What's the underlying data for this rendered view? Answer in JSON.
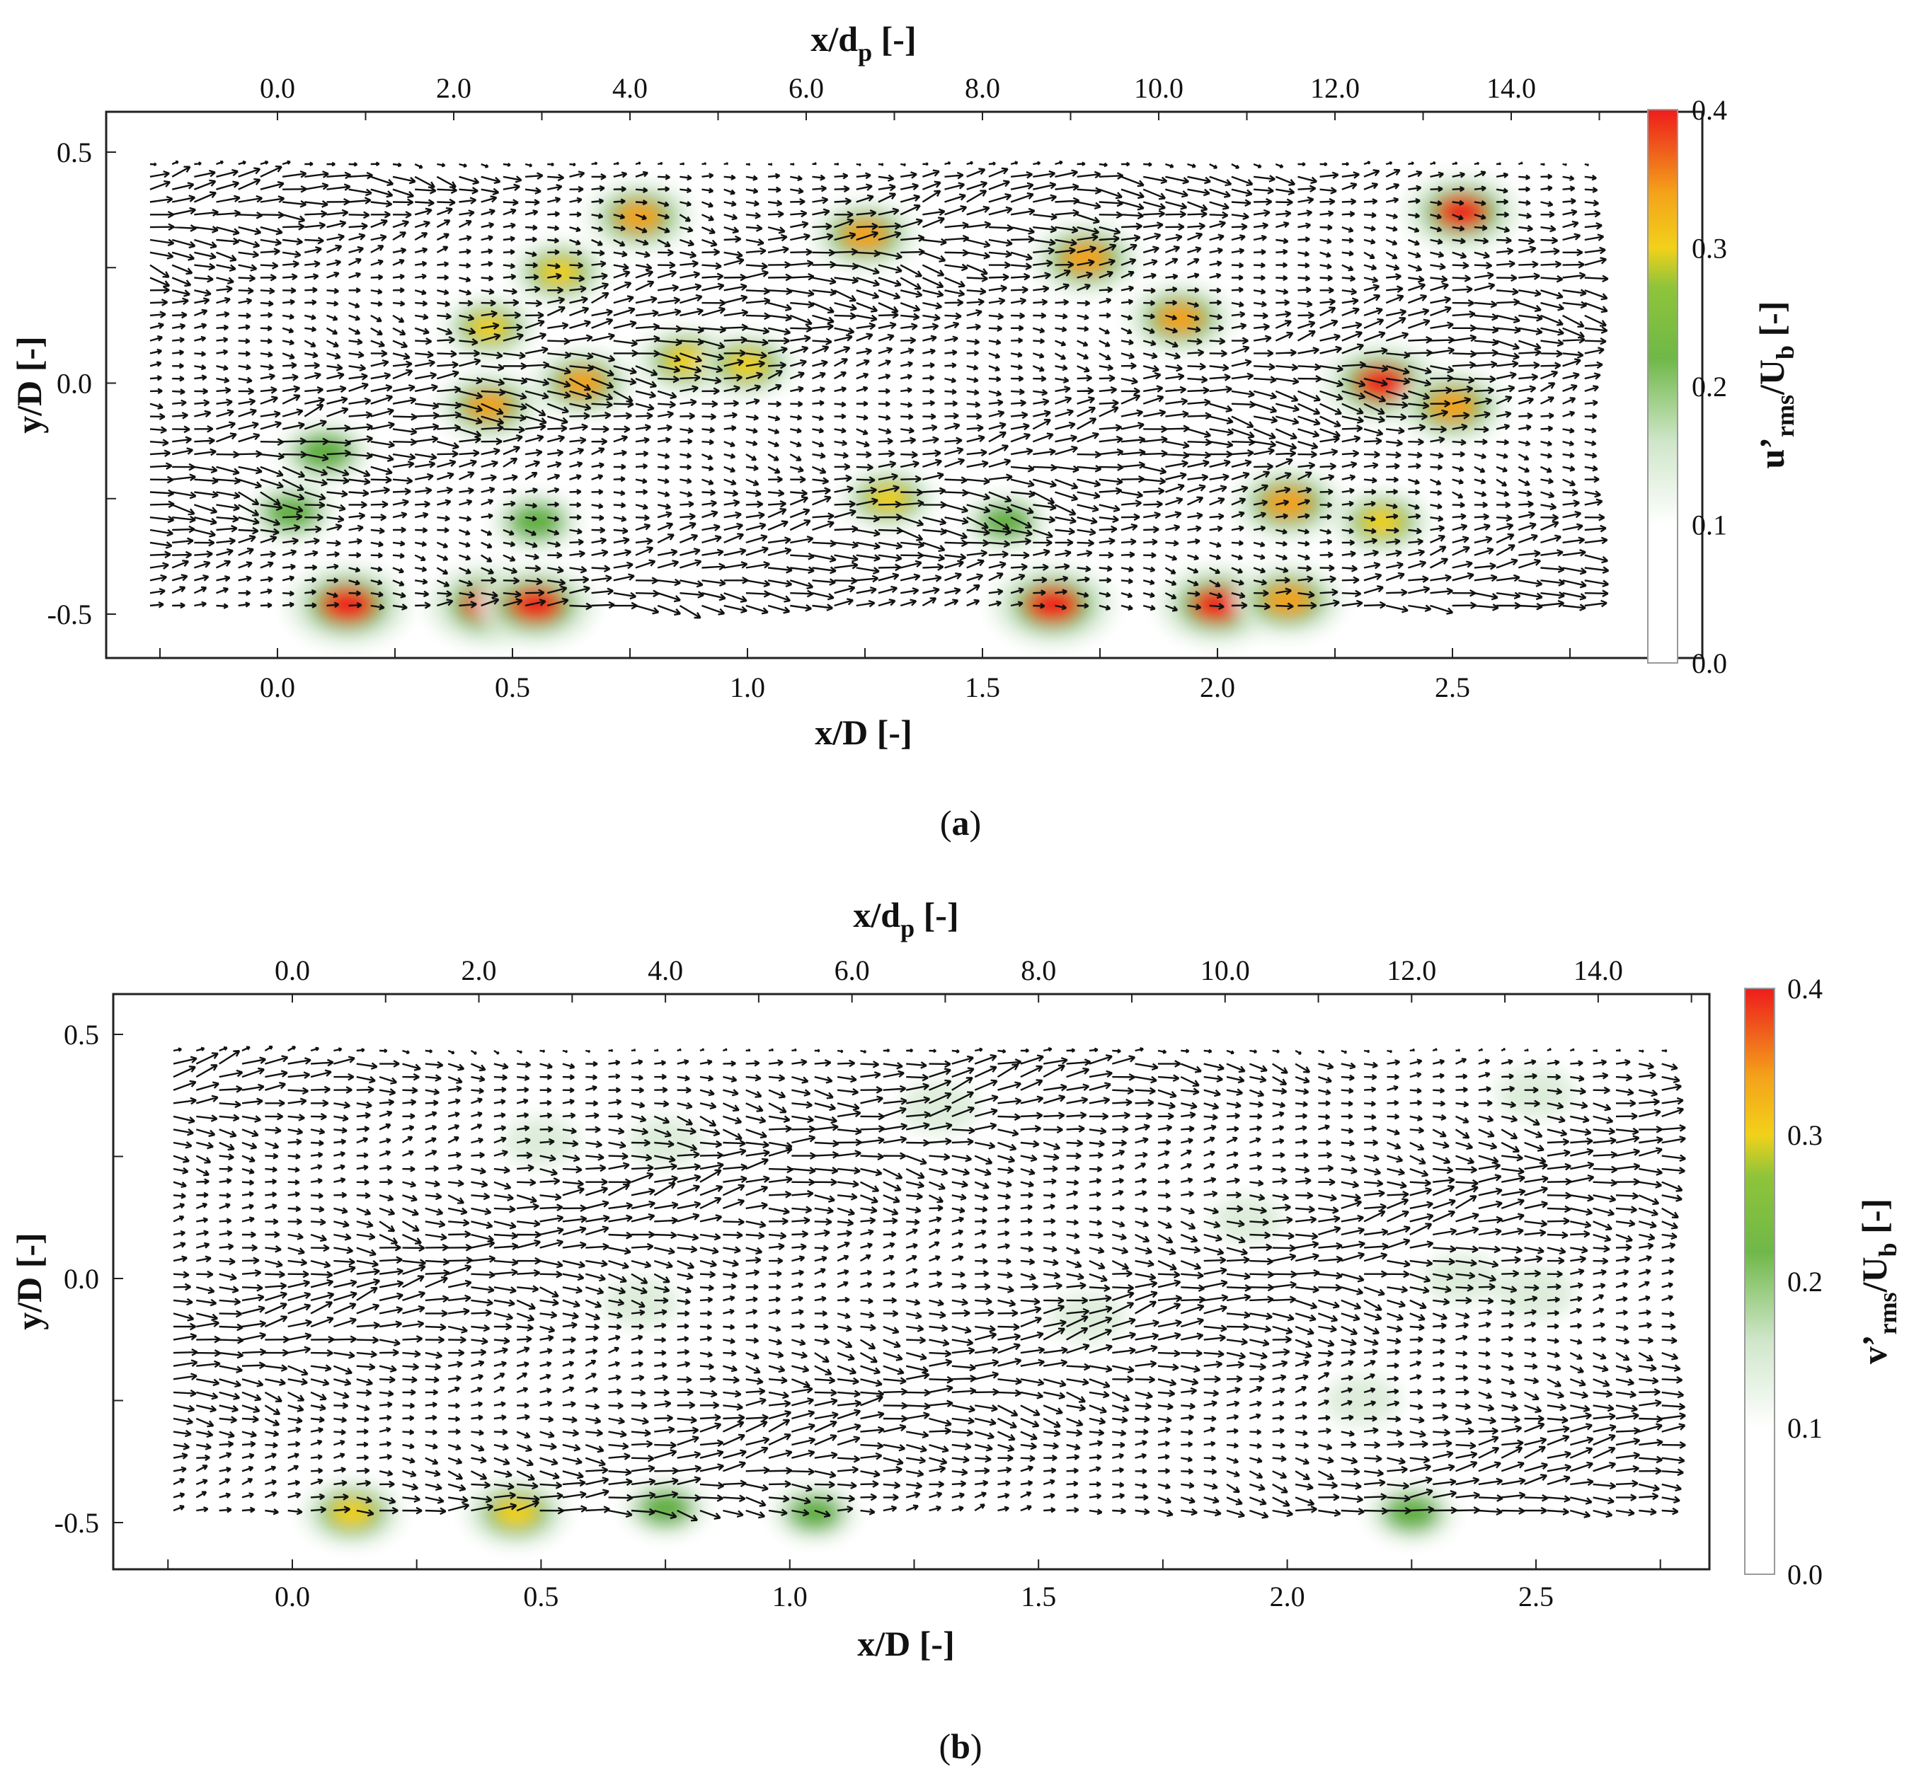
{
  "chart_data": [
    {
      "type": "heatmap",
      "panel_label": "a",
      "xlabel_bottom": "x/D [-]",
      "xlabel_top": "x/dp [-]",
      "ylabel": "y/D [-]",
      "colorbar_label": "u’rms/Ub [-]",
      "xlim": [
        -0.26,
        2.84
      ],
      "ylim": [
        -0.6,
        0.6
      ],
      "x_ticks_bottom": [
        "0.0",
        "0.5",
        "1.0",
        "1.5",
        "2.0",
        "2.5"
      ],
      "x_ticks_top": [
        "0.0",
        "2.0",
        "4.0",
        "6.0",
        "8.0",
        "10.0",
        "12.0",
        "14.0"
      ],
      "y_ticks": [
        "0.5",
        "0.0",
        "-0.5"
      ],
      "colorbar": {
        "min": 0.0,
        "max": 0.4,
        "ticks": [
          "0.0",
          "0.1",
          "0.2",
          "0.3",
          "0.4"
        ]
      },
      "colors": [
        "#ffffff",
        "#dcecd9",
        "#5fae3c",
        "#f2d11a",
        "#f4a21a",
        "#ef1c1c"
      ],
      "hotspots": [
        {
          "x": 0.15,
          "y": -0.48,
          "value": 0.4
        },
        {
          "x": 0.45,
          "y": -0.48,
          "value": 0.4
        },
        {
          "x": 0.55,
          "y": -0.48,
          "value": 0.38
        },
        {
          "x": 1.65,
          "y": -0.48,
          "value": 0.4
        },
        {
          "x": 2.0,
          "y": -0.48,
          "value": 0.38
        },
        {
          "x": 2.15,
          "y": -0.47,
          "value": 0.32
        },
        {
          "x": 0.77,
          "y": 0.36,
          "value": 0.3
        },
        {
          "x": 1.25,
          "y": 0.32,
          "value": 0.3
        },
        {
          "x": 1.72,
          "y": 0.27,
          "value": 0.32
        },
        {
          "x": 1.92,
          "y": 0.14,
          "value": 0.3
        },
        {
          "x": 2.52,
          "y": 0.37,
          "value": 0.36
        },
        {
          "x": 2.35,
          "y": 0.0,
          "value": 0.38
        },
        {
          "x": 2.5,
          "y": -0.05,
          "value": 0.32
        },
        {
          "x": 0.45,
          "y": -0.05,
          "value": 0.28
        },
        {
          "x": 0.65,
          "y": 0.0,
          "value": 0.28
        },
        {
          "x": 0.87,
          "y": 0.05,
          "value": 0.26
        },
        {
          "x": 1.0,
          "y": 0.04,
          "value": 0.24
        },
        {
          "x": 2.15,
          "y": -0.26,
          "value": 0.32
        },
        {
          "x": 2.35,
          "y": -0.3,
          "value": 0.24
        },
        {
          "x": 0.6,
          "y": 0.24,
          "value": 0.24
        },
        {
          "x": 0.45,
          "y": 0.12,
          "value": 0.22
        },
        {
          "x": 0.1,
          "y": -0.15,
          "value": 0.2
        },
        {
          "x": 1.3,
          "y": -0.25,
          "value": 0.22
        },
        {
          "x": 0.55,
          "y": -0.3,
          "value": 0.18
        },
        {
          "x": 1.55,
          "y": -0.3,
          "value": 0.16
        },
        {
          "x": 0.03,
          "y": -0.28,
          "value": 0.18
        }
      ]
    },
    {
      "type": "heatmap",
      "panel_label": "b",
      "xlabel_bottom": "x/D [-]",
      "xlabel_top": "x/dp [-]",
      "ylabel": "y/D [-]",
      "colorbar_label": "v’rms/Ub [-]",
      "xlim": [
        -0.26,
        2.84
      ],
      "ylim": [
        -0.6,
        0.6
      ],
      "x_ticks_bottom": [
        "0.0",
        "0.5",
        "1.0",
        "1.5",
        "2.0",
        "2.5"
      ],
      "x_ticks_top": [
        "0.0",
        "2.0",
        "4.0",
        "6.0",
        "8.0",
        "10.0",
        "12.0",
        "14.0"
      ],
      "y_ticks": [
        "0.5",
        "0.0",
        "-0.5"
      ],
      "colorbar": {
        "min": 0.0,
        "max": 0.4,
        "ticks": [
          "0.0",
          "0.1",
          "0.2",
          "0.3",
          "0.4"
        ]
      },
      "colors": [
        "#ffffff",
        "#dcecd9",
        "#5fae3c",
        "#f2d11a",
        "#f4a21a",
        "#ef1c1c"
      ],
      "hotspots": [
        {
          "x": 0.12,
          "y": -0.48,
          "value": 0.26
        },
        {
          "x": 0.45,
          "y": -0.48,
          "value": 0.27
        },
        {
          "x": 0.75,
          "y": -0.47,
          "value": 0.16
        },
        {
          "x": 1.05,
          "y": -0.48,
          "value": 0.16
        },
        {
          "x": 2.25,
          "y": -0.48,
          "value": 0.18
        },
        {
          "x": 1.3,
          "y": 0.35,
          "value": 0.14
        },
        {
          "x": 0.5,
          "y": 0.28,
          "value": 0.12
        },
        {
          "x": 0.75,
          "y": 0.28,
          "value": 0.12
        },
        {
          "x": 2.5,
          "y": 0.38,
          "value": 0.14
        },
        {
          "x": 2.5,
          "y": -0.03,
          "value": 0.14
        },
        {
          "x": 2.35,
          "y": 0.0,
          "value": 0.12
        },
        {
          "x": 1.6,
          "y": -0.08,
          "value": 0.12
        },
        {
          "x": 0.7,
          "y": -0.05,
          "value": 0.12
        },
        {
          "x": 2.15,
          "y": -0.25,
          "value": 0.12
        },
        {
          "x": 1.92,
          "y": 0.12,
          "value": 0.1
        }
      ]
    }
  ]
}
